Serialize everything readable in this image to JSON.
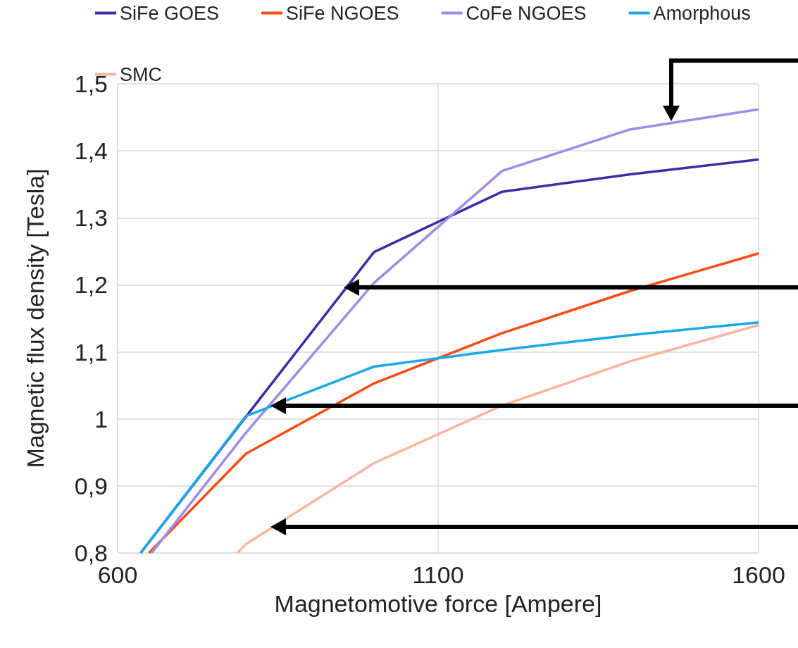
{
  "chart_data": {
    "type": "line",
    "xlabel": "Magnetomotive force [Ampere]",
    "ylabel": "Magnetic flux density [Tesla]",
    "xlim": [
      600,
      1600
    ],
    "xticks": [
      600,
      1100,
      1600
    ],
    "ylim": [
      0.8,
      1.5
    ],
    "yticks": [
      {
        "value": 0.8,
        "label": "0,8"
      },
      {
        "value": 0.9,
        "label": "0,9"
      },
      {
        "value": 1,
        "label": "1"
      },
      {
        "value": 1.1,
        "label": "1,1"
      },
      {
        "value": 1.2,
        "label": "1,2"
      },
      {
        "value": 1.3,
        "label": "1,3"
      },
      {
        "value": 1.4,
        "label": "1,4"
      },
      {
        "value": 1.5,
        "label": "1,5"
      }
    ],
    "grid": true,
    "legend": "top",
    "marker": "none",
    "line_style": "solid",
    "series": [
      {
        "name": "SiFe GOES",
        "color": "#3f2aa8",
        "x": [
          636,
          800,
          1000,
          1200,
          1400,
          1600
        ],
        "values": [
          0.8,
          1.003,
          1.249,
          1.339,
          1.365,
          1.387
        ]
      },
      {
        "name": "SiFe NGOES",
        "color": "#fc4a14",
        "x": [
          649,
          800,
          1000,
          1200,
          1400,
          1600
        ],
        "values": [
          0.8,
          0.948,
          1.053,
          1.128,
          1.191,
          1.247
        ]
      },
      {
        "name": "CoFe NGOES",
        "color": "#a08be6",
        "x": [
          653,
          800,
          1000,
          1200,
          1400,
          1600
        ],
        "values": [
          0.8,
          0.979,
          1.203,
          1.37,
          1.432,
          1.462
        ]
      },
      {
        "name": "Amorphous",
        "color": "#1ca7e6",
        "x": [
          636,
          800,
          1000,
          1200,
          1400,
          1600
        ],
        "values": [
          0.8,
          1.004,
          1.078,
          1.103,
          1.125,
          1.144
        ]
      },
      {
        "name": "SMC",
        "color": "#fbb49e",
        "x": [
          787,
          800,
          1000,
          1200,
          1400,
          1600
        ],
        "values": [
          0.8,
          0.813,
          0.934,
          1.02,
          1.086,
          1.14
        ]
      }
    ]
  }
}
